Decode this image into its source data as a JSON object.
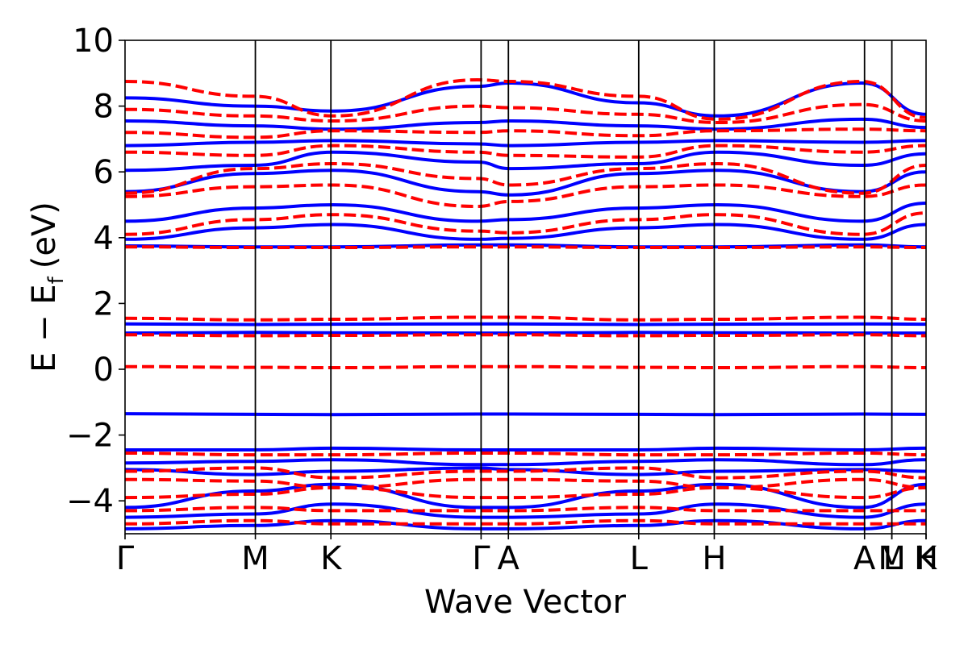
{
  "chart_data": {
    "type": "line",
    "title": "",
    "xlabel": "Wave Vector",
    "ylabel": {
      "main": "E − E",
      "subscript": "f",
      "unit": "(eV)"
    },
    "ylim": [
      -5,
      10
    ],
    "yticks": [
      -4,
      -2,
      0,
      2,
      4,
      6,
      8,
      10
    ],
    "ytick_labels": [
      "−4",
      "−2",
      "0",
      "2",
      "4",
      "6",
      "8",
      "10"
    ],
    "grid": false,
    "high_symmetry_points": [
      {
        "label": "Γ",
        "x": 0.0
      },
      {
        "label": "M",
        "x": 0.1627
      },
      {
        "label": "K",
        "x": 0.257
      },
      {
        "label": "Γ",
        "x": 0.4445
      },
      {
        "label": "A",
        "x": 0.4786
      },
      {
        "label": "L",
        "x": 0.6413
      },
      {
        "label": "H",
        "x": 0.7356
      },
      {
        "label": "A",
        "x": 0.9232
      },
      {
        "label": "L",
        "x": 0.9573
      },
      {
        "label": "M",
        "x": 0.9573
      },
      {
        "label": "K",
        "x": 1.0
      },
      {
        "label": "H",
        "x": 1.0
      }
    ],
    "series": [
      {
        "style": "solid",
        "color": "#0000ff",
        "bands": [
          {
            "x": [
              0,
              0.16,
              0.26,
              0.44,
              0.48,
              0.64,
              0.74,
              0.92,
              1.0
            ],
            "y": [
              -1.35,
              -1.37,
              -1.38,
              -1.36,
              -1.36,
              -1.37,
              -1.38,
              -1.36,
              -1.37
            ]
          },
          {
            "x": [
              0,
              0.16,
              0.26,
              0.44,
              0.48,
              0.64,
              0.74,
              0.92,
              1.0
            ],
            "y": [
              1.1,
              1.12,
              1.11,
              1.1,
              1.1,
              1.12,
              1.11,
              1.1,
              1.1
            ]
          },
          {
            "x": [
              0,
              0.16,
              0.26,
              0.44,
              0.48,
              0.64,
              0.74,
              0.92,
              1.0
            ],
            "y": [
              1.38,
              1.36,
              1.37,
              1.38,
              1.38,
              1.36,
              1.37,
              1.38,
              1.37
            ]
          },
          {
            "x": [
              0,
              0.16,
              0.26,
              0.44,
              0.48,
              0.64,
              0.74,
              0.92,
              1.0
            ],
            "y": [
              3.75,
              3.72,
              3.72,
              3.78,
              3.78,
              3.72,
              3.72,
              3.78,
              3.72
            ]
          },
          {
            "x": [
              0,
              0.16,
              0.26,
              0.44,
              0.48,
              0.64,
              0.74,
              0.92,
              1.0
            ],
            "y": [
              3.95,
              4.3,
              4.4,
              3.95,
              3.98,
              4.3,
              4.4,
              3.95,
              4.4
            ]
          },
          {
            "x": [
              0,
              0.16,
              0.26,
              0.44,
              0.48,
              0.64,
              0.74,
              0.92,
              1.0
            ],
            "y": [
              4.5,
              4.9,
              5.0,
              4.5,
              4.55,
              4.9,
              5.0,
              4.5,
              5.05
            ]
          },
          {
            "x": [
              0,
              0.16,
              0.26,
              0.44,
              0.48,
              0.64,
              0.74,
              0.92,
              1.0
            ],
            "y": [
              5.4,
              5.95,
              6.05,
              5.4,
              5.3,
              5.95,
              6.05,
              5.4,
              6.0
            ]
          },
          {
            "x": [
              0,
              0.16,
              0.26,
              0.44,
              0.48,
              0.64,
              0.74,
              0.92,
              1.0
            ],
            "y": [
              6.05,
              6.2,
              6.6,
              6.3,
              6.1,
              6.25,
              6.6,
              6.2,
              6.55
            ]
          },
          {
            "x": [
              0,
              0.16,
              0.26,
              0.44,
              0.48,
              0.64,
              0.74,
              0.92,
              1.0
            ],
            "y": [
              6.8,
              6.9,
              6.95,
              6.85,
              6.8,
              6.9,
              6.95,
              6.9,
              6.95
            ]
          },
          {
            "x": [
              0,
              0.16,
              0.26,
              0.44,
              0.48,
              0.64,
              0.74,
              0.92,
              1.0
            ],
            "y": [
              7.55,
              7.4,
              7.3,
              7.5,
              7.55,
              7.4,
              7.3,
              7.6,
              7.35
            ]
          },
          {
            "x": [
              0,
              0.16,
              0.26,
              0.44,
              0.48,
              0.64,
              0.74,
              0.92,
              1.0
            ],
            "y": [
              8.25,
              8.0,
              7.85,
              8.6,
              8.7,
              8.1,
              7.7,
              8.7,
              7.75
            ]
          },
          {
            "x": [
              0,
              0.16,
              0.26,
              0.44,
              0.48,
              0.64,
              0.74,
              0.92,
              1.0
            ],
            "y": [
              -2.45,
              -2.45,
              -2.4,
              -2.45,
              -2.45,
              -2.45,
              -2.4,
              -2.45,
              -2.4
            ]
          },
          {
            "x": [
              0,
              0.16,
              0.26,
              0.44,
              0.48,
              0.64,
              0.74,
              0.92,
              1.0
            ],
            "y": [
              -2.85,
              -2.8,
              -2.75,
              -2.9,
              -2.9,
              -2.8,
              -2.75,
              -2.9,
              -2.75
            ]
          },
          {
            "x": [
              0,
              0.16,
              0.26,
              0.44,
              0.48,
              0.64,
              0.74,
              0.92,
              1.0
            ],
            "y": [
              -3.05,
              -3.2,
              -3.1,
              -3.0,
              -3.05,
              -3.2,
              -3.1,
              -3.05,
              -3.1
            ]
          },
          {
            "x": [
              0,
              0.16,
              0.26,
              0.44,
              0.48,
              0.64,
              0.74,
              0.92,
              1.0
            ],
            "y": [
              -4.2,
              -3.7,
              -3.5,
              -4.2,
              -4.2,
              -3.7,
              -3.5,
              -4.2,
              -3.5
            ]
          },
          {
            "x": [
              0,
              0.16,
              0.26,
              0.44,
              0.48,
              0.64,
              0.74,
              0.92,
              1.0
            ],
            "y": [
              -4.5,
              -4.4,
              -4.1,
              -4.5,
              -4.5,
              -4.4,
              -4.1,
              -4.5,
              -4.1
            ]
          },
          {
            "x": [
              0,
              0.16,
              0.26,
              0.44,
              0.48,
              0.64,
              0.74,
              0.92,
              1.0
            ],
            "y": [
              -4.85,
              -4.75,
              -4.6,
              -4.85,
              -4.85,
              -4.75,
              -4.6,
              -4.85,
              -4.6
            ]
          }
        ]
      },
      {
        "style": "dashed",
        "color": "#ff0000",
        "bands": [
          {
            "x": [
              0,
              0.16,
              0.26,
              0.44,
              0.48,
              0.64,
              0.74,
              0.92,
              1.0
            ],
            "y": [
              0.08,
              0.06,
              0.05,
              0.08,
              0.08,
              0.06,
              0.05,
              0.08,
              0.05
            ]
          },
          {
            "x": [
              0,
              0.16,
              0.26,
              0.44,
              0.48,
              0.64,
              0.74,
              0.92,
              1.0
            ],
            "y": [
              1.05,
              1.02,
              1.03,
              1.05,
              1.05,
              1.02,
              1.03,
              1.05,
              1.02
            ]
          },
          {
            "x": [
              0,
              0.16,
              0.26,
              0.44,
              0.48,
              0.64,
              0.74,
              0.92,
              1.0
            ],
            "y": [
              1.55,
              1.5,
              1.52,
              1.58,
              1.58,
              1.5,
              1.52,
              1.58,
              1.52
            ]
          },
          {
            "x": [
              0,
              0.16,
              0.26,
              0.44,
              0.48,
              0.64,
              0.74,
              0.92,
              1.0
            ],
            "y": [
              3.72,
              3.7,
              3.7,
              3.72,
              3.72,
              3.7,
              3.7,
              3.72,
              3.7
            ]
          },
          {
            "x": [
              0,
              0.16,
              0.26,
              0.44,
              0.48,
              0.64,
              0.74,
              0.92,
              1.0
            ],
            "y": [
              4.1,
              4.55,
              4.7,
              4.2,
              4.15,
              4.55,
              4.7,
              4.1,
              4.75
            ]
          },
          {
            "x": [
              0,
              0.16,
              0.26,
              0.44,
              0.48,
              0.64,
              0.74,
              0.92,
              1.0
            ],
            "y": [
              5.25,
              5.55,
              5.6,
              4.95,
              5.1,
              5.55,
              5.6,
              5.25,
              5.6
            ]
          },
          {
            "x": [
              0,
              0.16,
              0.26,
              0.44,
              0.48,
              0.64,
              0.74,
              0.92,
              1.0
            ],
            "y": [
              5.35,
              6.1,
              6.25,
              5.8,
              5.6,
              6.1,
              6.25,
              5.35,
              6.2
            ]
          },
          {
            "x": [
              0,
              0.16,
              0.26,
              0.44,
              0.48,
              0.64,
              0.74,
              0.92,
              1.0
            ],
            "y": [
              6.6,
              6.5,
              6.8,
              6.6,
              6.5,
              6.45,
              6.8,
              6.6,
              6.8
            ]
          },
          {
            "x": [
              0,
              0.16,
              0.26,
              0.44,
              0.48,
              0.64,
              0.74,
              0.92,
              1.0
            ],
            "y": [
              7.2,
              7.05,
              7.25,
              7.2,
              7.25,
              7.1,
              7.25,
              7.3,
              7.25
            ]
          },
          {
            "x": [
              0,
              0.16,
              0.26,
              0.44,
              0.48,
              0.64,
              0.74,
              0.92,
              1.0
            ],
            "y": [
              7.9,
              7.7,
              7.55,
              8.0,
              7.95,
              7.75,
              7.5,
              8.05,
              7.55
            ]
          },
          {
            "x": [
              0,
              0.16,
              0.26,
              0.44,
              0.48,
              0.64,
              0.74,
              0.92,
              1.0
            ],
            "y": [
              8.75,
              8.3,
              7.7,
              8.8,
              8.75,
              8.3,
              7.6,
              8.75,
              7.65
            ]
          },
          {
            "x": [
              0,
              0.16,
              0.26,
              0.44,
              0.48,
              0.64,
              0.74,
              0.92,
              1.0
            ],
            "y": [
              -2.55,
              -2.6,
              -2.6,
              -2.55,
              -2.55,
              -2.6,
              -2.6,
              -2.55,
              -2.6
            ]
          },
          {
            "x": [
              0,
              0.16,
              0.26,
              0.44,
              0.48,
              0.64,
              0.74,
              0.92,
              1.0
            ],
            "y": [
              -3.1,
              -3.0,
              -3.3,
              -3.1,
              -3.1,
              -3.0,
              -3.3,
              -3.1,
              -3.3
            ]
          },
          {
            "x": [
              0,
              0.16,
              0.26,
              0.44,
              0.48,
              0.64,
              0.74,
              0.92,
              1.0
            ],
            "y": [
              -3.35,
              -3.4,
              -3.6,
              -3.35,
              -3.35,
              -3.4,
              -3.6,
              -3.35,
              -3.6
            ]
          },
          {
            "x": [
              0,
              0.16,
              0.26,
              0.44,
              0.48,
              0.64,
              0.74,
              0.92,
              1.0
            ],
            "y": [
              -3.9,
              -3.8,
              -3.6,
              -3.9,
              -3.9,
              -3.8,
              -3.6,
              -3.9,
              -3.6
            ]
          },
          {
            "x": [
              0,
              0.16,
              0.26,
              0.44,
              0.48,
              0.64,
              0.74,
              0.92,
              1.0
            ],
            "y": [
              -4.3,
              -4.2,
              -4.3,
              -4.3,
              -4.3,
              -4.2,
              -4.3,
              -4.3,
              -4.3
            ]
          },
          {
            "x": [
              0,
              0.16,
              0.26,
              0.44,
              0.48,
              0.64,
              0.74,
              0.92,
              1.0
            ],
            "y": [
              -4.7,
              -4.6,
              -4.7,
              -4.7,
              -4.7,
              -4.6,
              -4.7,
              -4.7,
              -4.7
            ]
          }
        ]
      }
    ]
  }
}
